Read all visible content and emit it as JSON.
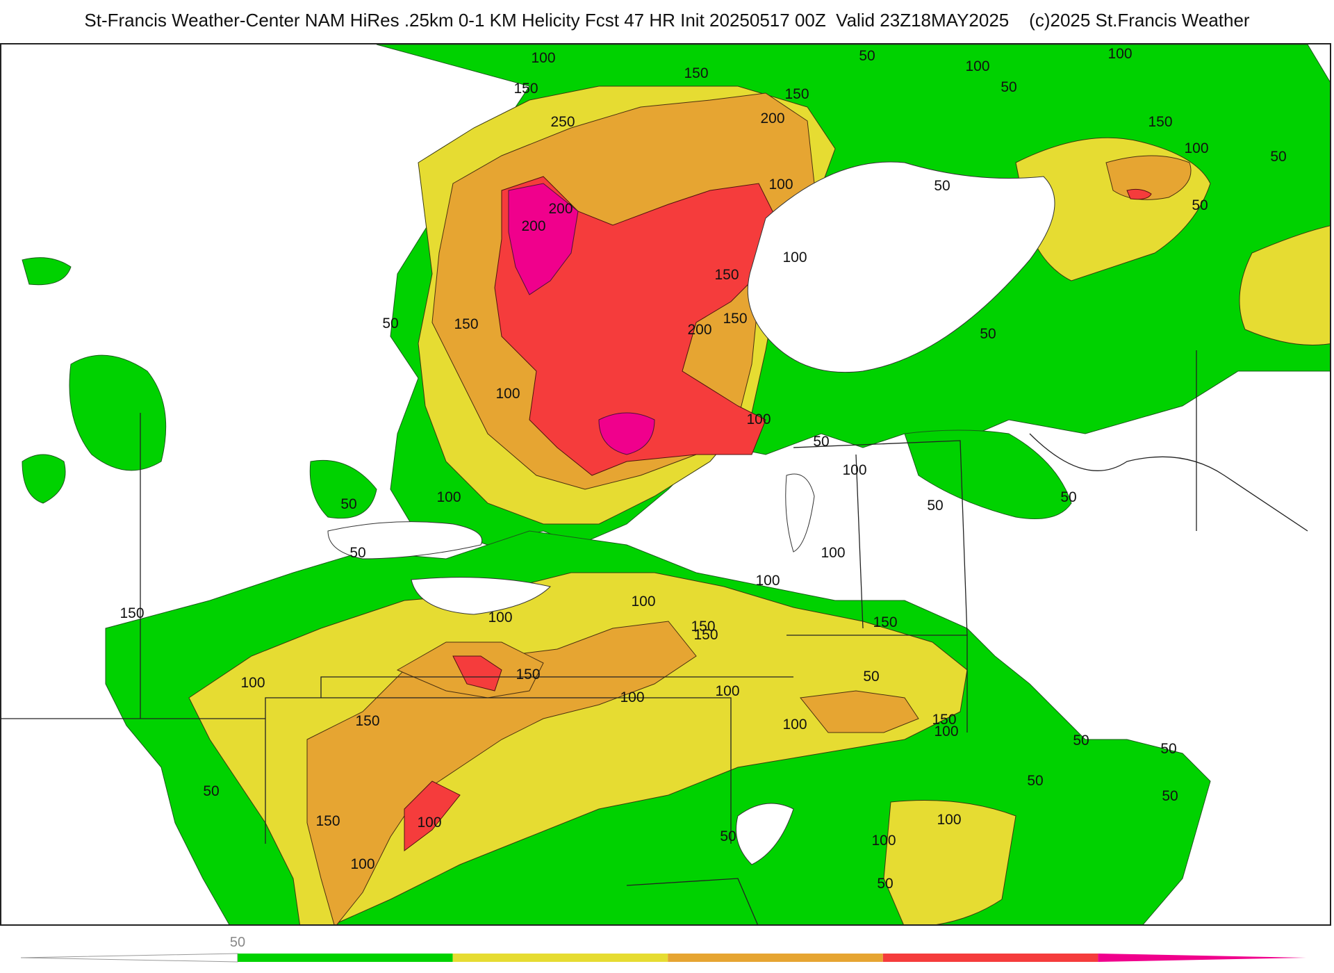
{
  "title": "St-Francis Weather-Center NAM HiRes .25km 0-1 KM Helicity Fcst 47 HR Init 20250517 00Z  Valid 23Z18MAY2025    (c)2025 St.Francis Weather",
  "colors": {
    "band_50": "#00d200",
    "band_100": "#e6dc32",
    "band_150": "#e6a532",
    "band_200": "#f53c3c",
    "band_250": "#f0008c",
    "background": "#ffffff",
    "boundaries": "#222222"
  },
  "colorbar": {
    "tick_labels": [
      "50"
    ],
    "bands": [
      "band_50",
      "band_100",
      "band_150",
      "band_200",
      "band_250"
    ]
  },
  "contour_labels": [
    "100",
    "150",
    "250",
    "200",
    "200",
    "100",
    "150",
    "200",
    "150",
    "100",
    "50",
    "100",
    "50",
    "50",
    "100",
    "150",
    "100",
    "50",
    "50",
    "100",
    "50",
    "150",
    "200",
    "150",
    "50",
    "100",
    "100",
    "50",
    "50",
    "150",
    "100",
    "50",
    "50",
    "100",
    "100",
    "50",
    "50",
    "100",
    "100",
    "150",
    "100",
    "150",
    "150",
    "100",
    "150",
    "150",
    "50",
    "100",
    "100",
    "50",
    "150",
    "100",
    "150",
    "100",
    "50",
    "100",
    "100",
    "150",
    "50",
    "50",
    "100",
    "50",
    "50",
    "50",
    "100"
  ]
}
